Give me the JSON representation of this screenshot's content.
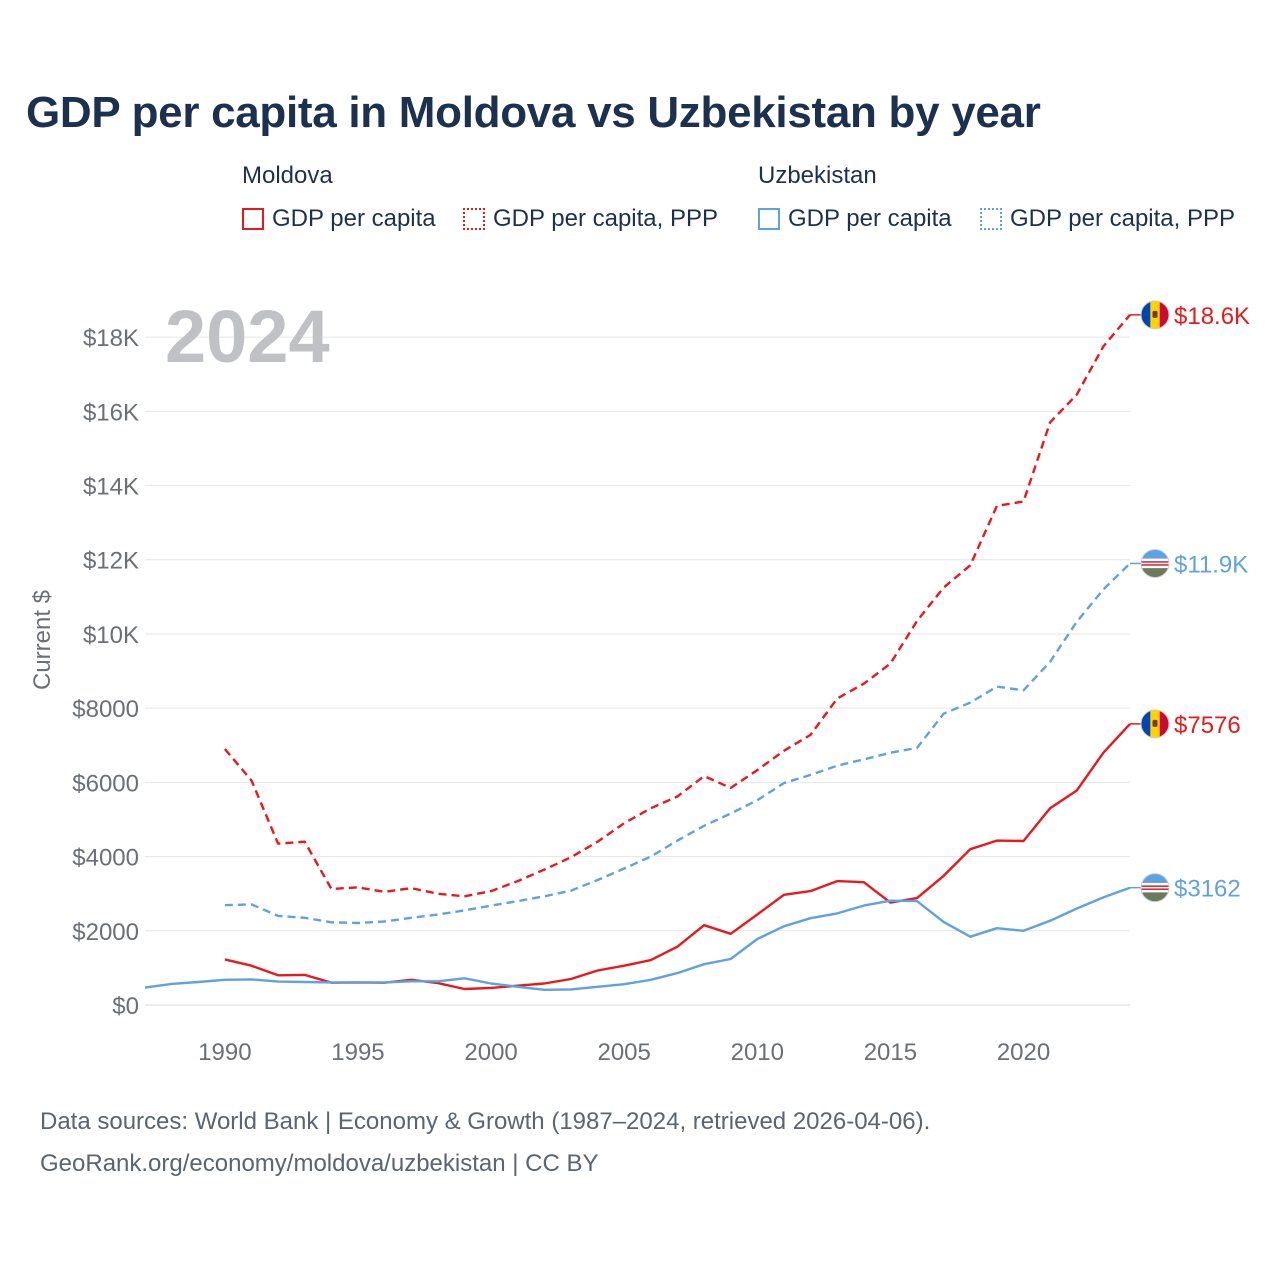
{
  "title": "GDP per capita in Moldova vs Uzbekistan by year",
  "legend": {
    "groups": [
      {
        "name": "Moldova",
        "items": [
          "GDP per capita",
          "GDP per capita, PPP"
        ],
        "color": "#e8191d"
      },
      {
        "name": "Uzbekistan",
        "items": [
          "GDP per capita",
          "GDP per capita, PPP"
        ],
        "color": "#5fa2e0"
      }
    ]
  },
  "footer": {
    "line1": "Data sources: World Bank | Economy & Growth (1987–2024, retrieved 2026-04-06).",
    "line2": "GeoRank.org/economy/moldova/uzbekistan | CC BY"
  },
  "chart_data": {
    "type": "line",
    "title": "GDP per capita in Moldova vs Uzbekistan by year",
    "year_watermark": "2024",
    "ylabel": "Current $",
    "xlabel": "",
    "xlim": [
      1987,
      2024
    ],
    "ylim": [
      0,
      19000
    ],
    "x_ticks": [
      1990,
      1995,
      2000,
      2005,
      2010,
      2015,
      2020
    ],
    "x_tick_labels": [
      "1990",
      "1995",
      "2000",
      "2005",
      "2010",
      "2015",
      "2020"
    ],
    "y_ticks": [
      0,
      2000,
      4000,
      6000,
      8000,
      10000,
      12000,
      14000,
      16000,
      18000
    ],
    "y_tick_labels": [
      "$0",
      "$2000",
      "$4000",
      "$6000",
      "$8000",
      "$10K",
      "$12K",
      "$14K",
      "$16K",
      "$18K"
    ],
    "grid": true,
    "series": [
      {
        "name": "Moldova GDP per capita, PPP",
        "country": "Moldova",
        "style": "dashed",
        "color": "#e8191d",
        "end_label": "$18.6K",
        "flag": "moldova",
        "x": [
          1990,
          1991,
          1992,
          1993,
          1994,
          1995,
          1996,
          1997,
          1998,
          1999,
          2000,
          2001,
          2002,
          2003,
          2004,
          2005,
          2006,
          2007,
          2008,
          2009,
          2010,
          2011,
          2012,
          2013,
          2014,
          2015,
          2016,
          2017,
          2018,
          2019,
          2020,
          2021,
          2022,
          2023,
          2024
        ],
        "values": [
          6900,
          6050,
          4350,
          4400,
          3130,
          3170,
          3050,
          3150,
          3000,
          2930,
          3070,
          3340,
          3650,
          3980,
          4400,
          4900,
          5300,
          5620,
          6170,
          5850,
          6330,
          6850,
          7280,
          8260,
          8660,
          9200,
          10350,
          11250,
          11850,
          13450,
          13570,
          15700,
          16450,
          17750,
          18600
        ]
      },
      {
        "name": "Uzbekistan GDP per capita, PPP",
        "country": "Uzbekistan",
        "style": "dashed",
        "color": "#5fa2e0",
        "end_label": "$11.9K",
        "flag": "uzbekistan",
        "x": [
          1990,
          1991,
          1992,
          1993,
          1994,
          1995,
          1996,
          1997,
          1998,
          1999,
          2000,
          2001,
          2002,
          2003,
          2004,
          2005,
          2006,
          2007,
          2008,
          2009,
          2010,
          2011,
          2012,
          2013,
          2014,
          2015,
          2016,
          2017,
          2018,
          2019,
          2020,
          2021,
          2022,
          2023,
          2024
        ],
        "values": [
          2690,
          2710,
          2400,
          2350,
          2230,
          2210,
          2250,
          2350,
          2440,
          2550,
          2680,
          2800,
          2930,
          3080,
          3370,
          3680,
          4000,
          4430,
          4830,
          5160,
          5520,
          5980,
          6200,
          6450,
          6620,
          6800,
          6930,
          7850,
          8150,
          8580,
          8480,
          9250,
          10330,
          11200,
          11900
        ]
      },
      {
        "name": "Moldova GDP per capita",
        "country": "Moldova",
        "style": "solid",
        "color": "#e8191d",
        "end_label": "$7576",
        "flag": "moldova",
        "x": [
          1990,
          1991,
          1992,
          1993,
          1994,
          1995,
          1996,
          1997,
          1998,
          1999,
          2000,
          2001,
          2002,
          2003,
          2004,
          2005,
          2006,
          2007,
          2008,
          2009,
          2010,
          2011,
          2012,
          2013,
          2014,
          2015,
          2016,
          2017,
          2018,
          2019,
          2020,
          2021,
          2022,
          2023,
          2024
        ],
        "values": [
          1230,
          1060,
          800,
          810,
          600,
          610,
          600,
          680,
          590,
          430,
          460,
          520,
          580,
          700,
          930,
          1060,
          1210,
          1570,
          2150,
          1920,
          2440,
          2970,
          3070,
          3340,
          3310,
          2760,
          2880,
          3480,
          4200,
          4430,
          4420,
          5300,
          5780,
          6800,
          7576
        ]
      },
      {
        "name": "Uzbekistan GDP per capita",
        "country": "Uzbekistan",
        "style": "solid",
        "color": "#5fa2e0",
        "end_label": "$3162",
        "flag": "uzbekistan",
        "x": [
          1987,
          1988,
          1989,
          1990,
          1991,
          1992,
          1993,
          1994,
          1995,
          1996,
          1997,
          1998,
          1999,
          2000,
          2001,
          2002,
          2003,
          2004,
          2005,
          2006,
          2007,
          2008,
          2009,
          2010,
          2011,
          2012,
          2013,
          2014,
          2015,
          2016,
          2017,
          2018,
          2019,
          2020,
          2021,
          2022,
          2023,
          2024
        ],
        "values": [
          470,
          570,
          620,
          680,
          690,
          630,
          620,
          610,
          610,
          610,
          640,
          640,
          720,
          580,
          490,
          410,
          420,
          490,
          560,
          680,
          860,
          1100,
          1240,
          1780,
          2120,
          2340,
          2470,
          2680,
          2810,
          2800,
          2240,
          1840,
          2070,
          2000,
          2270,
          2600,
          2900,
          3162
        ]
      }
    ]
  }
}
